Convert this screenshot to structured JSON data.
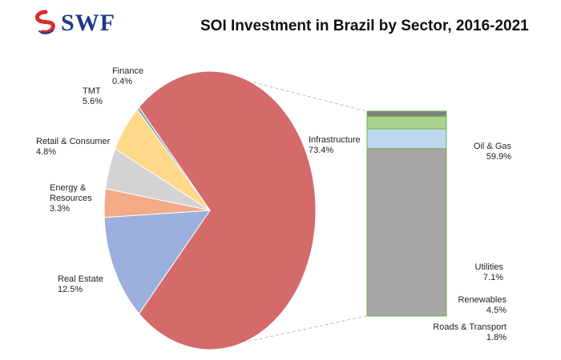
{
  "header": {
    "logo_text": "SWF",
    "logo_icon": "swf-swirl-logo-icon",
    "title": "SOI Investment in Brazil by Sector, 2016-2021"
  },
  "colors": {
    "logo_red": "#d92b2b",
    "logo_blue": "#1f3a8a"
  },
  "chart_data": [
    {
      "type": "pie",
      "title": "SOI Investment in Brazil by Sector, 2016-2021",
      "slices": [
        {
          "label": "Infrastructure",
          "value": 73.4,
          "display": "73.4%",
          "color": "#d46a6a"
        },
        {
          "label": "Real Estate",
          "value": 12.5,
          "display": "12.5%",
          "color": "#9cb0df"
        },
        {
          "label": "Energy & Resources",
          "value": 3.3,
          "display": "3.3%",
          "color": "#f4a987"
        },
        {
          "label": "Retail & Consumer",
          "value": 4.8,
          "display": "4.8%",
          "color": "#d3d3d3"
        },
        {
          "label": "TMT",
          "value": 5.6,
          "display": "5.6%",
          "color": "#ffd88a"
        },
        {
          "label": "Finance",
          "value": 0.4,
          "display": "0.4%",
          "color": "#8fa6b5"
        }
      ],
      "legend": "none"
    },
    {
      "type": "bar",
      "stacked": true,
      "parent": "Infrastructure",
      "segments": [
        {
          "label": "Oil & Gas",
          "value": 59.9,
          "display": "59.9%",
          "color": "#a6a6a6"
        },
        {
          "label": "Utilities",
          "value": 7.1,
          "display": "7.1%",
          "color": "#bdd7ee"
        },
        {
          "label": "Renewables",
          "value": 4.5,
          "display": "4.5%",
          "color": "#a9d18e"
        },
        {
          "label": "Roads & Transport",
          "value": 1.8,
          "display": "1.8%",
          "color": "#7f7f7f"
        }
      ],
      "legend": "none"
    }
  ]
}
